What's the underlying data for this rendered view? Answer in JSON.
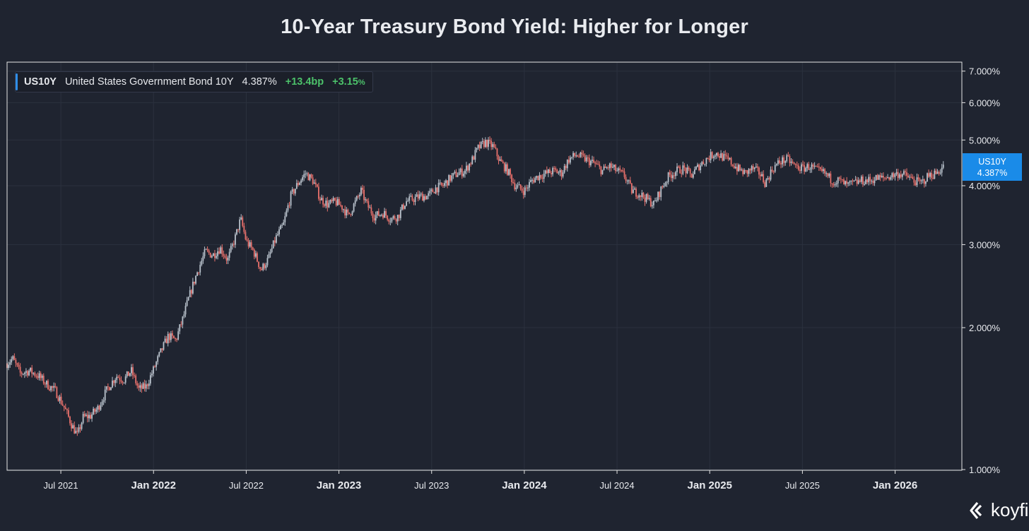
{
  "chart_data": {
    "type": "candlestick",
    "title": "10-Year Treasury Bond Yield: Higher for Longer",
    "scale": "log",
    "ylim": [
      1.0,
      7.2
    ],
    "y_ticks": [
      "7.000%",
      "6.000%",
      "5.000%",
      "4.000%",
      "3.000%",
      "2.000%",
      "1.000%"
    ],
    "y_tick_values": [
      7,
      6,
      5,
      4,
      3,
      2,
      1
    ],
    "x_ticks": [
      {
        "label": "Jul 2021",
        "t": 2021.5,
        "bold": false
      },
      {
        "label": "Jan 2022",
        "t": 2022.0,
        "bold": true
      },
      {
        "label": "Jul 2022",
        "t": 2022.5,
        "bold": false
      },
      {
        "label": "Jan 2023",
        "t": 2023.0,
        "bold": true
      },
      {
        "label": "Jul 2023",
        "t": 2023.5,
        "bold": false
      },
      {
        "label": "Jan 2024",
        "t": 2024.0,
        "bold": true
      },
      {
        "label": "Jul 2024",
        "t": 2024.5,
        "bold": false
      },
      {
        "label": "Jan 2025",
        "t": 2025.0,
        "bold": true
      },
      {
        "label": "Jul 2025",
        "t": 2025.5,
        "bold": false
      },
      {
        "label": "Jan 2026",
        "t": 2026.0,
        "bold": true
      }
    ],
    "xlim": [
      2021.21,
      2026.36
    ],
    "series": [
      {
        "name": "US10Y",
        "points": [
          [
            2021.21,
            1.68
          ],
          [
            2021.24,
            1.72
          ],
          [
            2021.28,
            1.6
          ],
          [
            2021.33,
            1.62
          ],
          [
            2021.38,
            1.58
          ],
          [
            2021.42,
            1.52
          ],
          [
            2021.47,
            1.47
          ],
          [
            2021.52,
            1.35
          ],
          [
            2021.56,
            1.24
          ],
          [
            2021.59,
            1.18
          ],
          [
            2021.62,
            1.29
          ],
          [
            2021.66,
            1.3
          ],
          [
            2021.7,
            1.35
          ],
          [
            2021.75,
            1.48
          ],
          [
            2021.8,
            1.58
          ],
          [
            2021.84,
            1.55
          ],
          [
            2021.88,
            1.62
          ],
          [
            2021.92,
            1.48
          ],
          [
            2021.96,
            1.5
          ],
          [
            2022.0,
            1.63
          ],
          [
            2022.04,
            1.78
          ],
          [
            2022.08,
            1.92
          ],
          [
            2022.12,
            1.88
          ],
          [
            2022.16,
            2.1
          ],
          [
            2022.2,
            2.38
          ],
          [
            2022.24,
            2.65
          ],
          [
            2022.28,
            2.9
          ],
          [
            2022.32,
            2.85
          ],
          [
            2022.36,
            2.95
          ],
          [
            2022.4,
            2.78
          ],
          [
            2022.44,
            3.1
          ],
          [
            2022.47,
            3.4
          ],
          [
            2022.5,
            3.05
          ],
          [
            2022.54,
            2.9
          ],
          [
            2022.58,
            2.65
          ],
          [
            2022.62,
            2.8
          ],
          [
            2022.66,
            3.1
          ],
          [
            2022.7,
            3.3
          ],
          [
            2022.74,
            3.8
          ],
          [
            2022.78,
            4.05
          ],
          [
            2022.82,
            4.25
          ],
          [
            2022.86,
            4.1
          ],
          [
            2022.9,
            3.75
          ],
          [
            2022.94,
            3.65
          ],
          [
            2022.98,
            3.7
          ],
          [
            2023.02,
            3.6
          ],
          [
            2023.05,
            3.45
          ],
          [
            2023.09,
            3.7
          ],
          [
            2023.12,
            3.9
          ],
          [
            2023.15,
            3.65
          ],
          [
            2023.19,
            3.45
          ],
          [
            2023.24,
            3.5
          ],
          [
            2023.28,
            3.4
          ],
          [
            2023.32,
            3.45
          ],
          [
            2023.36,
            3.7
          ],
          [
            2023.4,
            3.75
          ],
          [
            2023.44,
            3.8
          ],
          [
            2023.48,
            3.8
          ],
          [
            2023.52,
            3.95
          ],
          [
            2023.56,
            4.0
          ],
          [
            2023.6,
            4.15
          ],
          [
            2023.64,
            4.25
          ],
          [
            2023.68,
            4.3
          ],
          [
            2023.72,
            4.55
          ],
          [
            2023.75,
            4.8
          ],
          [
            2023.79,
            4.95
          ],
          [
            2023.83,
            4.85
          ],
          [
            2023.87,
            4.5
          ],
          [
            2023.91,
            4.3
          ],
          [
            2023.95,
            4.0
          ],
          [
            2024.0,
            3.9
          ],
          [
            2024.04,
            4.1
          ],
          [
            2024.08,
            4.2
          ],
          [
            2024.12,
            4.25
          ],
          [
            2024.16,
            4.3
          ],
          [
            2024.2,
            4.25
          ],
          [
            2024.24,
            4.55
          ],
          [
            2024.28,
            4.65
          ],
          [
            2024.33,
            4.55
          ],
          [
            2024.38,
            4.45
          ],
          [
            2024.42,
            4.3
          ],
          [
            2024.46,
            4.4
          ],
          [
            2024.5,
            4.3
          ],
          [
            2024.54,
            4.2
          ],
          [
            2024.58,
            3.9
          ],
          [
            2024.62,
            3.85
          ],
          [
            2024.66,
            3.75
          ],
          [
            2024.7,
            3.65
          ],
          [
            2024.74,
            3.95
          ],
          [
            2024.78,
            4.2
          ],
          [
            2024.82,
            4.3
          ],
          [
            2024.86,
            4.35
          ],
          [
            2024.9,
            4.2
          ],
          [
            2024.94,
            4.4
          ],
          [
            2024.98,
            4.55
          ],
          [
            2025.03,
            4.7
          ],
          [
            2025.07,
            4.6
          ],
          [
            2025.11,
            4.5
          ],
          [
            2025.15,
            4.35
          ],
          [
            2025.19,
            4.25
          ],
          [
            2025.23,
            4.35
          ],
          [
            2025.27,
            4.25
          ],
          [
            2025.3,
            4.05
          ],
          [
            2025.34,
            4.35
          ],
          [
            2025.38,
            4.5
          ],
          [
            2025.42,
            4.55
          ],
          [
            2025.46,
            4.4
          ],
          [
            2025.5,
            4.35
          ],
          [
            2025.54,
            4.4
          ],
          [
            2025.58,
            4.3
          ],
          [
            2025.62,
            4.25
          ],
          [
            2025.66,
            4.1
          ],
          [
            2025.7,
            4.1
          ],
          [
            2025.74,
            4.0
          ],
          [
            2025.78,
            4.05
          ],
          [
            2025.82,
            4.1
          ],
          [
            2025.86,
            4.1
          ],
          [
            2025.9,
            4.15
          ],
          [
            2025.94,
            4.15
          ],
          [
            2025.98,
            4.2
          ],
          [
            2026.02,
            4.25
          ],
          [
            2026.06,
            4.2
          ],
          [
            2026.1,
            4.1
          ],
          [
            2026.14,
            4.05
          ],
          [
            2026.18,
            4.2
          ],
          [
            2026.22,
            4.25
          ],
          [
            2026.26,
            4.387
          ]
        ]
      }
    ]
  },
  "legend": {
    "symbol": "US10Y",
    "name": "United States Government Bond 10Y",
    "last": "4.387%",
    "change_bp": "+13.4bp",
    "change_pct": "+3.15",
    "change_pct_unit": "%"
  },
  "last_label": {
    "symbol": "US10Y",
    "value": "4.387%"
  },
  "brand": {
    "name": "koyfin"
  },
  "colors": {
    "background": "#1f2430",
    "grid": "#2b313e",
    "frame": "#e6e6e6",
    "candle_down": "#e8706b",
    "candle_up": "#b9c2cc",
    "label_bg": "#1a8be8",
    "positive": "#4cc16a"
  }
}
